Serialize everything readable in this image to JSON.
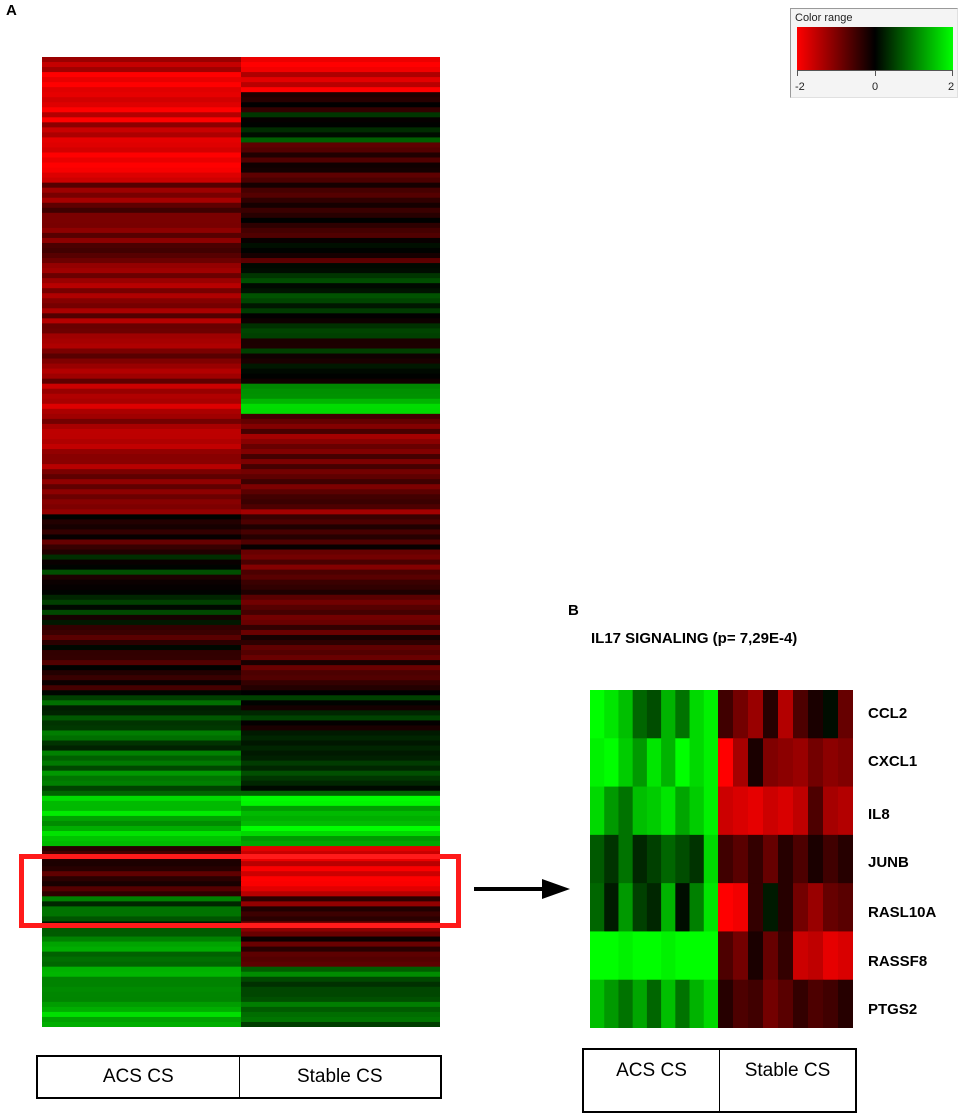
{
  "figure": {
    "panel_a_label": "A",
    "panel_b_label": "B"
  },
  "legend": {
    "title": "Color range",
    "min_label": "-2",
    "mid_label": "0",
    "max_label": "2",
    "colors": {
      "low": "#ff0000",
      "mid": "#000000",
      "high": "#00ff00"
    }
  },
  "highlight_color": "#ff1a1a",
  "chart_data": [
    {
      "type": "heatmap",
      "title": "",
      "columns": [
        "ACS CS",
        "Stable CS"
      ],
      "scale": {
        "min": -2,
        "max": 2
      },
      "blocks": [
        {
          "rows": 3,
          "acs": -1.2,
          "stable": -1.9
        },
        {
          "rows": 4,
          "acs": -1.9,
          "stable": -1.7
        },
        {
          "rows": 6,
          "acs": -1.8,
          "stable": 0.0
        },
        {
          "rows": 4,
          "acs": -1.5,
          "stable": 0.3
        },
        {
          "rows": 8,
          "acs": -1.7,
          "stable": -0.5
        },
        {
          "rows": 16,
          "acs": -0.9,
          "stable": -0.3
        },
        {
          "rows": 24,
          "acs": -1.0,
          "stable": 0.2
        },
        {
          "rows": 6,
          "acs": -1.3,
          "stable": 1.5
        },
        {
          "rows": 20,
          "acs": -1.1,
          "stable": -0.9
        },
        {
          "rows": 8,
          "acs": -0.4,
          "stable": -0.5
        },
        {
          "rows": 14,
          "acs": 0.2,
          "stable": -0.6
        },
        {
          "rows": 14,
          "acs": -0.3,
          "stable": -0.4
        },
        {
          "rows": 12,
          "acs": 0.6,
          "stable": 0.1
        },
        {
          "rows": 8,
          "acs": 0.9,
          "stable": 0.4
        },
        {
          "rows": 10,
          "acs": 1.5,
          "stable": 1.6
        },
        {
          "rows": 10,
          "acs": -0.3,
          "stable": -1.6
        },
        {
          "rows": 8,
          "acs": 0.6,
          "stable": -0.7
        },
        {
          "rows": 6,
          "acs": 1.2,
          "stable": -0.5
        },
        {
          "rows": 12,
          "acs": 1.4,
          "stable": 0.7
        }
      ]
    },
    {
      "type": "heatmap",
      "title": "IL17 SIGNALING (p= 7,29E-4)",
      "columns": [
        "ACS CS",
        "Stable CS"
      ],
      "scale": {
        "min": -2,
        "max": 2
      },
      "genes": [
        "CCL2",
        "CXCL1",
        "IL8",
        "JUNB",
        "RASL10A",
        "RASSF8",
        "PTGS2"
      ],
      "values": [
        [
          2.0,
          1.8,
          1.5,
          0.8,
          0.6,
          1.4,
          0.9,
          1.7,
          1.9,
          -0.5,
          -0.9,
          -1.2,
          -0.3,
          -1.4,
          -0.6,
          -0.2,
          0.1,
          -0.8
        ],
        [
          1.9,
          2.0,
          1.6,
          1.2,
          1.8,
          1.4,
          2.0,
          1.7,
          1.9,
          -2.0,
          -1.3,
          -0.2,
          -1.0,
          -1.1,
          -1.2,
          -0.9,
          -1.1,
          -1.0
        ],
        [
          1.7,
          1.2,
          0.9,
          1.5,
          1.6,
          1.8,
          1.3,
          1.6,
          1.9,
          -1.6,
          -1.7,
          -1.8,
          -1.6,
          -1.7,
          -1.5,
          -0.6,
          -1.3,
          -1.4
        ],
        [
          0.7,
          0.4,
          0.9,
          0.3,
          0.5,
          0.8,
          0.6,
          0.4,
          1.7,
          -0.5,
          -0.7,
          -0.4,
          -0.8,
          -0.3,
          -0.6,
          -0.2,
          -0.5,
          -0.3
        ],
        [
          0.8,
          0.2,
          1.2,
          0.5,
          0.3,
          1.4,
          0.1,
          1.0,
          1.8,
          -2.0,
          -1.9,
          -0.4,
          0.2,
          -0.3,
          -0.9,
          -1.2,
          -0.8,
          -0.7
        ],
        [
          2.0,
          2.0,
          1.9,
          2.0,
          2.0,
          1.9,
          2.0,
          2.0,
          2.0,
          -0.6,
          -0.9,
          -0.2,
          -0.8,
          -0.4,
          -1.6,
          -1.5,
          -1.8,
          -1.7
        ],
        [
          1.5,
          1.2,
          0.9,
          1.3,
          0.8,
          1.5,
          0.9,
          1.4,
          1.7,
          -0.3,
          -0.6,
          -0.5,
          -0.9,
          -0.7,
          -0.4,
          -0.6,
          -0.5,
          -0.3
        ]
      ],
      "acs_columns": 9,
      "stable_columns": 9
    }
  ],
  "groups_a": {
    "left": "ACS CS",
    "right": "Stable CS"
  },
  "groups_b": {
    "left": "ACS CS",
    "right": "Stable CS"
  },
  "genes_b": {
    "g0": "CCL2",
    "g1": "CXCL1",
    "g2": "IL8",
    "g3": "JUNB",
    "g4": "RASL10A",
    "g5": "RASSF8",
    "g6": "PTGS2"
  }
}
